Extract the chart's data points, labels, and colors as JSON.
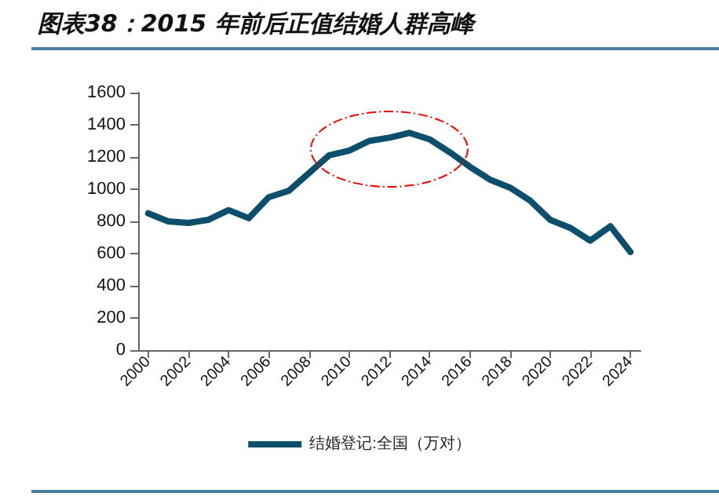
{
  "chart_data": {
    "type": "line",
    "title": "图表38：2015 年前后正值结婚人群高峰",
    "categories": [
      "2000",
      null,
      "2002",
      null,
      "2004",
      null,
      "2006",
      null,
      "2008",
      null,
      "2010",
      null,
      "2012",
      null,
      "2014",
      null,
      "2016",
      null,
      "2018",
      null,
      "2020",
      null,
      "2022",
      null,
      "2024"
    ],
    "series": [
      {
        "name": "结婚登记:全国（万对）",
        "color": "#0b4f6c",
        "values": [
          850,
          800,
          790,
          810,
          870,
          820,
          950,
          990,
          1100,
          1210,
          1240,
          1300,
          1320,
          1350,
          1310,
          1230,
          1140,
          1060,
          1010,
          930,
          810,
          760,
          680,
          770,
          610
        ]
      }
    ],
    "ylim": [
      0,
      1600
    ],
    "yticks": [
      0,
      200,
      400,
      600,
      800,
      1000,
      1200,
      1400,
      1600
    ],
    "grid": false,
    "legend": "bottom",
    "marker": "none",
    "line_style": "solid"
  }
}
